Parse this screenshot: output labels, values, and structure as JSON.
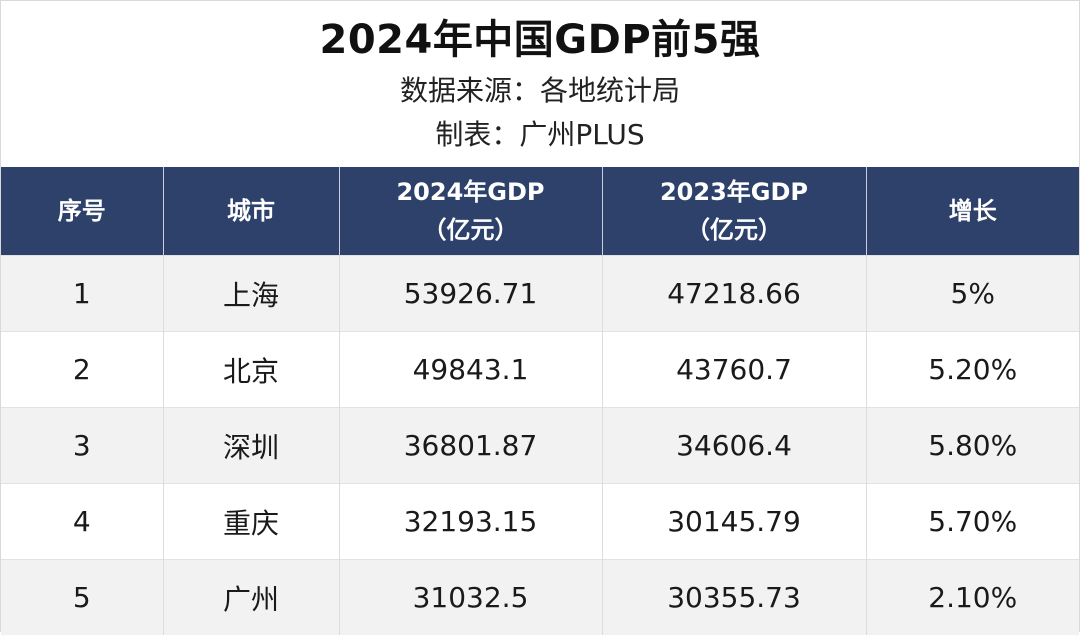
{
  "header": {
    "title": "2024年中国GDP前5强",
    "source": "数据来源：各地统计局",
    "credit": "制表：广州PLUS"
  },
  "table": {
    "columns": [
      {
        "line1": "序号",
        "line2": ""
      },
      {
        "line1": "城市",
        "line2": ""
      },
      {
        "line1": "2024年GDP",
        "line2": "（亿元）"
      },
      {
        "line1": "2023年GDP",
        "line2": "（亿元）"
      },
      {
        "line1": "增长",
        "line2": ""
      }
    ],
    "rows": [
      {
        "rank": "1",
        "city": "上海",
        "gdp2024": "53926.71",
        "gdp2023": "47218.66",
        "growth": "5%"
      },
      {
        "rank": "2",
        "city": "北京",
        "gdp2024": "49843.1",
        "gdp2023": "43760.7",
        "growth": "5.20%"
      },
      {
        "rank": "3",
        "city": "深圳",
        "gdp2024": "36801.87",
        "gdp2023": "34606.4",
        "growth": "5.80%"
      },
      {
        "rank": "4",
        "city": "重庆",
        "gdp2024": "32193.15",
        "gdp2023": "30145.79",
        "growth": "5.70%"
      },
      {
        "rank": "5",
        "city": "广州",
        "gdp2024": "31032.5",
        "gdp2023": "30355.73",
        "growth": "2.10%"
      }
    ]
  },
  "colors": {
    "header_bg": "#2d416b",
    "header_text": "#ffffff",
    "row_alt_bg": "#f2f2f2",
    "row_bg": "#ffffff"
  }
}
